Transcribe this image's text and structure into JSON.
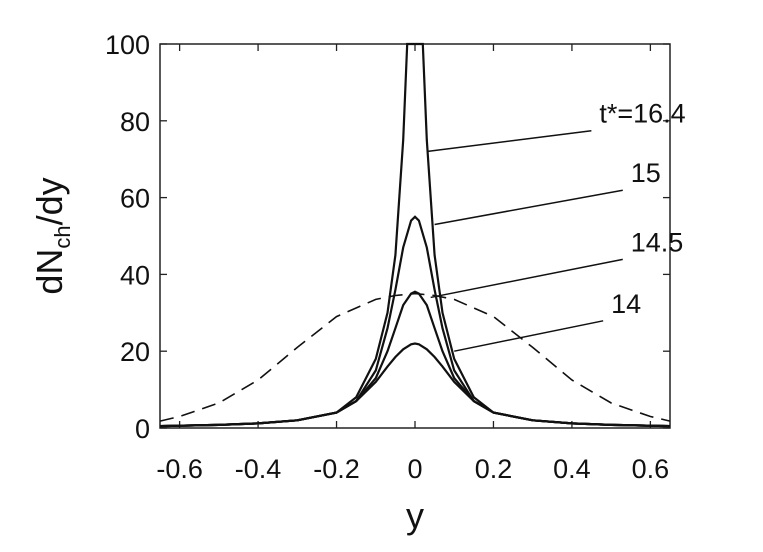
{
  "chart_data": {
    "type": "line",
    "title": "",
    "xlabel": "y",
    "ylabel": "dN_ch/dy",
    "ylabel_main": "dN",
    "ylabel_sub": "ch",
    "ylabel_tail": "/dy",
    "xlim": [
      -0.65,
      0.65
    ],
    "ylim": [
      0,
      100
    ],
    "xticks": [
      -0.6,
      -0.4,
      -0.2,
      0,
      0.2,
      0.4,
      0.6
    ],
    "xtick_labels": [
      "-0.6",
      "-0.4",
      "-0.2",
      "0",
      "0.2",
      "0.4",
      "0.6"
    ],
    "yticks": [
      0,
      20,
      40,
      60,
      80,
      100
    ],
    "ytick_labels": [
      "0",
      "20",
      "40",
      "60",
      "80",
      "100"
    ],
    "grid": false,
    "legend": "none",
    "series": [
      {
        "label": "t*=16.4",
        "style": "solid",
        "x": [
          -0.65,
          -0.5,
          -0.4,
          -0.3,
          -0.2,
          -0.15,
          -0.1,
          -0.07,
          -0.05,
          -0.03,
          -0.02,
          0.02,
          0.03,
          0.05,
          0.07,
          0.1,
          0.15,
          0.2,
          0.3,
          0.4,
          0.5,
          0.65
        ],
        "y": [
          0.5,
          0.8,
          1.2,
          2.0,
          4.0,
          8.0,
          18.0,
          30.0,
          45.0,
          75.0,
          100,
          100,
          75.0,
          45.0,
          30.0,
          18.0,
          8.0,
          4.0,
          2.0,
          1.2,
          0.8,
          0.5
        ]
      },
      {
        "label": "15",
        "style": "solid",
        "x": [
          -0.65,
          -0.5,
          -0.4,
          -0.3,
          -0.2,
          -0.15,
          -0.1,
          -0.07,
          -0.05,
          -0.03,
          -0.01,
          0,
          0.01,
          0.03,
          0.05,
          0.07,
          0.1,
          0.15,
          0.2,
          0.3,
          0.4,
          0.5,
          0.65
        ],
        "y": [
          0.5,
          0.8,
          1.2,
          2.0,
          4.0,
          7.0,
          15.0,
          26.0,
          36.0,
          47.0,
          54.0,
          55.0,
          54.0,
          47.0,
          36.0,
          26.0,
          15.0,
          7.0,
          4.0,
          2.0,
          1.2,
          0.8,
          0.5
        ]
      },
      {
        "label": "14.5",
        "style": "solid",
        "x": [
          -0.65,
          -0.5,
          -0.4,
          -0.3,
          -0.2,
          -0.15,
          -0.1,
          -0.07,
          -0.05,
          -0.03,
          -0.01,
          0,
          0.01,
          0.03,
          0.05,
          0.07,
          0.1,
          0.15,
          0.2,
          0.3,
          0.4,
          0.5,
          0.65
        ],
        "y": [
          0.5,
          0.8,
          1.2,
          2.0,
          4.0,
          7.0,
          13.0,
          20.0,
          26.0,
          32.0,
          35.0,
          35.5,
          35.0,
          32.0,
          26.0,
          20.0,
          13.0,
          7.0,
          4.0,
          2.0,
          1.2,
          0.8,
          0.5
        ]
      },
      {
        "label": "14",
        "style": "solid",
        "x": [
          -0.65,
          -0.5,
          -0.4,
          -0.3,
          -0.2,
          -0.15,
          -0.1,
          -0.07,
          -0.05,
          -0.03,
          -0.01,
          0,
          0.01,
          0.03,
          0.05,
          0.07,
          0.1,
          0.15,
          0.2,
          0.3,
          0.4,
          0.5,
          0.65
        ],
        "y": [
          0.5,
          0.8,
          1.2,
          2.0,
          4.0,
          7.0,
          12.0,
          16.0,
          18.5,
          20.5,
          21.8,
          22.0,
          21.8,
          20.5,
          18.5,
          16.0,
          12.0,
          7.0,
          4.0,
          2.0,
          1.2,
          0.8,
          0.5
        ]
      },
      {
        "label": "",
        "style": "dashed",
        "x": [
          -0.65,
          -0.6,
          -0.5,
          -0.4,
          -0.3,
          -0.2,
          -0.1,
          -0.05,
          0,
          0.05,
          0.1,
          0.2,
          0.3,
          0.4,
          0.5,
          0.6,
          0.65
        ],
        "y": [
          1.8,
          3.0,
          6.5,
          12.5,
          21.0,
          29.0,
          33.5,
          34.5,
          35.0,
          34.5,
          33.5,
          29.0,
          21.0,
          12.5,
          6.5,
          3.0,
          1.8
        ]
      }
    ],
    "annotations": [
      {
        "text": "t*=16.4",
        "x": 0.47,
        "y": 79.5,
        "target_x": 0.03,
        "target_y": 72
      },
      {
        "text": "15",
        "x": 0.55,
        "y": 64,
        "target_x": 0.05,
        "target_y": 53
      },
      {
        "text": "14.5",
        "x": 0.55,
        "y": 46,
        "target_x": 0.04,
        "target_y": 34
      },
      {
        "text": "14",
        "x": 0.5,
        "y": 30,
        "target_x": 0.1,
        "target_y": 20
      }
    ]
  }
}
